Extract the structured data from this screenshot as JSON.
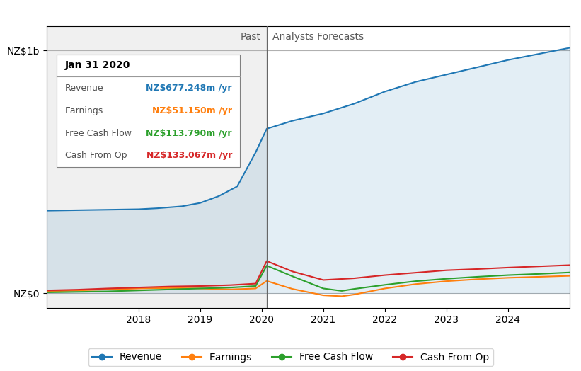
{
  "chart_data": {
    "type": "line",
    "xlim": [
      2016.5,
      2025.0
    ],
    "xticks": [
      2018,
      2019,
      2020,
      2021,
      2022,
      2023,
      2024
    ],
    "ylim": [
      -60,
      1100
    ],
    "yticks": [
      {
        "value": 0,
        "label": "NZ$0"
      },
      {
        "value": 1000,
        "label": "NZ$1b"
      }
    ],
    "grid": true,
    "legend": "lower center",
    "series": [
      {
        "name": "Revenue",
        "x": [
          2016.5,
          2017.0,
          2017.5,
          2018.0,
          2018.3,
          2018.7,
          2019.0,
          2019.3,
          2019.6,
          2019.9,
          2020.08,
          2020.08,
          2020.5,
          2021.0,
          2021.5,
          2022.0,
          2022.5,
          2023.0,
          2023.5,
          2024.0,
          2024.5,
          2025.0
        ],
        "values": [
          340,
          342,
          344,
          346,
          350,
          358,
          372,
          400,
          440,
          580,
          677,
          677,
          710,
          740,
          780,
          830,
          870,
          900,
          930,
          960,
          985,
          1010
        ]
      },
      {
        "name": "Earnings",
        "x": [
          2016.5,
          2017.0,
          2017.5,
          2018.0,
          2018.5,
          2019.0,
          2019.5,
          2019.9,
          2020.08,
          2020.08,
          2020.5,
          2021.0,
          2021.3,
          2021.5,
          2022.0,
          2022.5,
          2023.0,
          2023.5,
          2024.0,
          2024.5,
          2025.0
        ],
        "values": [
          8,
          12,
          16,
          20,
          22,
          20,
          16,
          20,
          51,
          51,
          18,
          -8,
          -12,
          -5,
          20,
          38,
          50,
          58,
          64,
          68,
          72
        ]
      },
      {
        "name": "Free Cash Flow",
        "x": [
          2016.5,
          2017.0,
          2017.5,
          2018.0,
          2018.5,
          2019.0,
          2019.5,
          2019.9,
          2020.08,
          2020.08,
          2020.5,
          2021.0,
          2021.3,
          2021.5,
          2022.0,
          2022.5,
          2023.0,
          2023.5,
          2024.0,
          2024.5,
          2025.0
        ],
        "values": [
          4,
          6,
          8,
          12,
          16,
          20,
          24,
          30,
          114,
          114,
          70,
          20,
          10,
          18,
          35,
          50,
          60,
          68,
          75,
          80,
          86
        ]
      },
      {
        "name": "Cash From Op",
        "x": [
          2016.5,
          2017.0,
          2017.5,
          2018.0,
          2018.5,
          2019.0,
          2019.5,
          2019.9,
          2020.08,
          2020.08,
          2020.5,
          2021.0,
          2021.5,
          2022.0,
          2022.5,
          2023.0,
          2023.5,
          2024.0,
          2024.5,
          2025.0
        ],
        "values": [
          12,
          15,
          20,
          24,
          28,
          30,
          34,
          40,
          133,
          133,
          90,
          55,
          62,
          75,
          85,
          95,
          100,
          106,
          111,
          116
        ]
      }
    ],
    "divider": {
      "x": 2020.08,
      "labels": [
        "Past",
        "Analysts Forecasts"
      ]
    },
    "tooltip": {
      "title": "Jan 31 2020",
      "rows": [
        {
          "label": "Revenue",
          "value": "NZ$677.248m /yr"
        },
        {
          "label": "Earnings",
          "value": "NZ$51.150m /yr"
        },
        {
          "label": "Free Cash Flow",
          "value": "NZ$113.790m /yr"
        },
        {
          "label": "Cash From Op",
          "value": "NZ$133.067m /yr"
        }
      ]
    }
  }
}
